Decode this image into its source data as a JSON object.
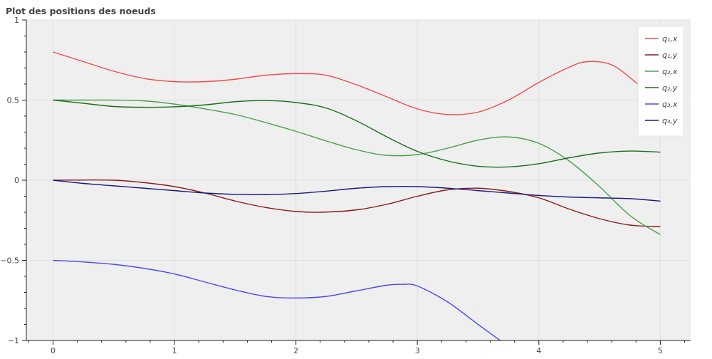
{
  "chart_data": {
    "type": "line",
    "title": "Plot des positions des noeuds",
    "xlabel": "",
    "ylabel": "",
    "xlim": [
      -0.22,
      5.25
    ],
    "ylim": [
      -1,
      1
    ],
    "x_ticks": [
      "0",
      "1",
      "2",
      "3",
      "4",
      "5"
    ],
    "y_ticks": [
      "1",
      "0.5",
      "0",
      "−0.5",
      "−1"
    ],
    "grid": true,
    "legend_position": "top-right",
    "colors": {
      "plot_background": "#efefef",
      "grid": "#e0e0e0",
      "axis": "#222222",
      "text": "#444444"
    },
    "series": [
      {
        "name": "q₁,x",
        "color": "#f04a4a",
        "x": [
          0,
          0.25,
          0.5,
          0.75,
          1,
          1.25,
          1.5,
          1.75,
          2,
          2.25,
          2.5,
          2.75,
          3,
          3.25,
          3.5,
          3.75,
          4,
          4.25,
          4.4,
          4.6,
          4.8,
          5
        ],
        "y": [
          0.8,
          0.74,
          0.68,
          0.635,
          0.615,
          0.615,
          0.63,
          0.655,
          0.665,
          0.655,
          0.595,
          0.52,
          0.445,
          0.41,
          0.425,
          0.5,
          0.61,
          0.705,
          0.74,
          0.72,
          0.61,
          0.49
        ]
      },
      {
        "name": "q₁,y",
        "color": "#8b1a1a",
        "x": [
          0,
          0.25,
          0.5,
          0.75,
          1,
          1.25,
          1.5,
          1.75,
          2,
          2.2,
          2.5,
          2.75,
          3,
          3.25,
          3.5,
          3.75,
          4,
          4.25,
          4.5,
          4.75,
          5
        ],
        "y": [
          0,
          0.001,
          0,
          -0.015,
          -0.04,
          -0.08,
          -0.13,
          -0.17,
          -0.195,
          -0.2,
          -0.185,
          -0.15,
          -0.1,
          -0.06,
          -0.05,
          -0.07,
          -0.11,
          -0.18,
          -0.24,
          -0.28,
          -0.29
        ]
      },
      {
        "name": "q₂,x",
        "color": "#4aa04a",
        "x": [
          0,
          0.25,
          0.5,
          0.75,
          1,
          1.25,
          1.5,
          1.75,
          2,
          2.25,
          2.5,
          2.75,
          3,
          3.25,
          3.5,
          3.75,
          4,
          4.25,
          4.5,
          4.75,
          5
        ],
        "y": [
          0.5,
          0.5,
          0.5,
          0.495,
          0.475,
          0.445,
          0.41,
          0.36,
          0.305,
          0.245,
          0.19,
          0.155,
          0.16,
          0.2,
          0.25,
          0.27,
          0.23,
          0.12,
          -0.04,
          -0.22,
          -0.34
        ]
      },
      {
        "name": "q₂,y",
        "color": "#1a6e1a",
        "x": [
          0,
          0.25,
          0.5,
          0.75,
          1,
          1.25,
          1.5,
          1.75,
          2,
          2.25,
          2.5,
          2.75,
          3,
          3.25,
          3.5,
          3.75,
          4,
          4.25,
          4.5,
          4.75,
          5
        ],
        "y": [
          0.5,
          0.48,
          0.46,
          0.455,
          0.458,
          0.47,
          0.49,
          0.497,
          0.485,
          0.45,
          0.37,
          0.27,
          0.18,
          0.12,
          0.087,
          0.083,
          0.103,
          0.14,
          0.17,
          0.182,
          0.175
        ]
      },
      {
        "name": "q₃,x",
        "color": "#4a4af0",
        "x": [
          0,
          0.25,
          0.5,
          0.75,
          1,
          1.25,
          1.5,
          1.75,
          2,
          2.25,
          2.5,
          2.75,
          2.88,
          3,
          3.25,
          3.5,
          3.7
        ],
        "y": [
          -0.5,
          -0.51,
          -0.525,
          -0.55,
          -0.585,
          -0.635,
          -0.685,
          -0.725,
          -0.735,
          -0.725,
          -0.69,
          -0.655,
          -0.65,
          -0.66,
          -0.76,
          -0.9,
          -1.01
        ]
      },
      {
        "name": "q₃,y",
        "color": "#1a1a80",
        "x": [
          0,
          0.25,
          0.5,
          0.75,
          1,
          1.25,
          1.5,
          1.75,
          2,
          2.25,
          2.5,
          2.75,
          3,
          3.25,
          3.5,
          3.75,
          4,
          4.25,
          4.5,
          4.75,
          5
        ],
        "y": [
          0,
          -0.02,
          -0.035,
          -0.05,
          -0.065,
          -0.08,
          -0.088,
          -0.09,
          -0.083,
          -0.068,
          -0.05,
          -0.04,
          -0.04,
          -0.05,
          -0.065,
          -0.08,
          -0.095,
          -0.105,
          -0.11,
          -0.115,
          -0.13
        ]
      }
    ]
  }
}
